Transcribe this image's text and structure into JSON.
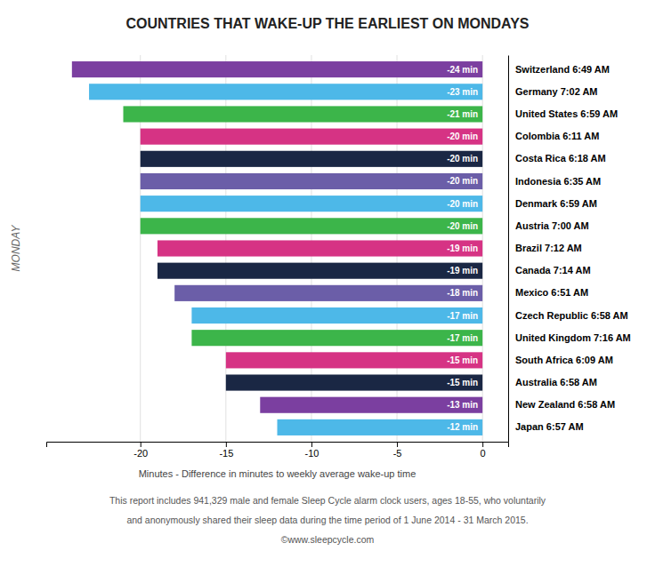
{
  "chart_data": {
    "type": "bar",
    "orientation": "horizontal",
    "title": "COUNTRIES THAT WAKE-UP THE EARLIEST ON MONDAYS",
    "xlabel": "Minutes - Difference in minutes to weekly average wake-up time",
    "ylabel": "MONDAY",
    "annotations": [
      "This report includes 941,329 male and female Sleep Cycle alarm clock users, ages 18-55, who voluntarily",
      "and anonymously shared their sleep data during the time period of 1 June 2014 - 31 March 2015.",
      "©www.sleepcycle.com"
    ],
    "categories": [
      "Switzerland 6:49 AM",
      "Germany 7:02 AM",
      "United States 6:59 AM",
      "Colombia 6:11 AM",
      "Costa Rica 6:18 AM",
      "Indonesia 6:35 AM",
      "Denmark 6:59 AM",
      "Austria 7:00 AM",
      "Brazil 7:12 AM",
      "Canada 7:14 AM",
      "Mexico 6:51 AM",
      "Czech Republic 6:58 AM",
      "United Kingdom 7:16 AM",
      "South Africa 6:09 AM",
      "Australia 6:58 AM",
      "New Zealand 6:58 AM",
      "Japan 6:57 AM"
    ],
    "values": [
      -24,
      -23,
      -21,
      -20,
      -20,
      -20,
      -20,
      -20,
      -19,
      -19,
      -18,
      -17,
      -17,
      -15,
      -15,
      -13,
      -12
    ],
    "value_labels": [
      "-24 min",
      "-23 min",
      "-21 min",
      "-20 min",
      "-20 min",
      "-20 min",
      "-20 min",
      "-20 min",
      "-19 min",
      "-19 min",
      "-18 min",
      "-17 min",
      "-17 min",
      "-15 min",
      "-15 min",
      "-13 min",
      "-12 min"
    ],
    "colors": [
      "#7b3fa0",
      "#4db8e8",
      "#3cb54a",
      "#d63384",
      "#1a2744",
      "#6b5ea8",
      "#4db8e8",
      "#3cb54a",
      "#d63384",
      "#1a2744",
      "#6b5ea8",
      "#4db8e8",
      "#3cb54a",
      "#d63384",
      "#1a2744",
      "#7b3fa0",
      "#4db8e8"
    ],
    "data_labels": true,
    "xlim": [
      -25.5,
      1.5
    ],
    "xticks": [
      -20,
      -15,
      -10,
      -5,
      0
    ],
    "grid": true
  }
}
